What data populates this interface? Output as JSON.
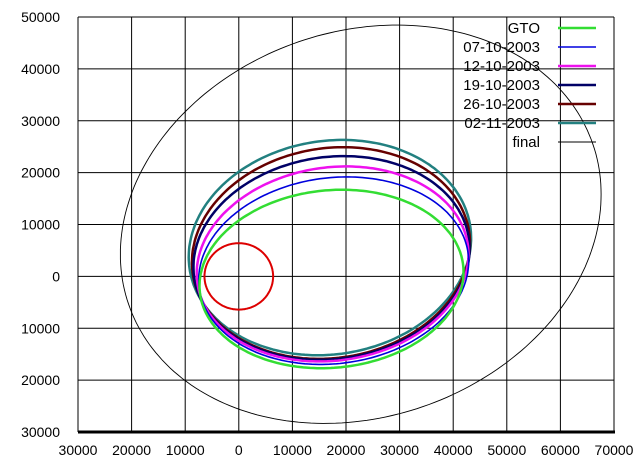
{
  "chart_data": {
    "type": "line",
    "title": "",
    "xlabel": "",
    "ylabel": "",
    "xlim": [
      -30000,
      70000
    ],
    "ylim": [
      -30000,
      50000
    ],
    "grid": true,
    "legend_position": "top-right",
    "x_ticks": [
      -30000,
      -20000,
      -10000,
      0,
      10000,
      20000,
      30000,
      40000,
      50000,
      60000,
      70000
    ],
    "x_tick_labels": [
      "30000",
      "20000",
      "10000",
      "0",
      "10000",
      "20000",
      "30000",
      "40000",
      "50000",
      "60000",
      "70000"
    ],
    "y_ticks": [
      50000,
      40000,
      30000,
      20000,
      10000,
      0,
      -10000,
      -20000,
      -30000
    ],
    "y_tick_labels": [
      "50000",
      "40000",
      "30000",
      "20000",
      "10000",
      "0",
      "10000",
      "20000",
      "30000"
    ],
    "earth": {
      "center": [
        0,
        0
      ],
      "radius": 6400,
      "color": "#dd0000"
    },
    "series": [
      {
        "name": "GTO",
        "color": "#33dd33",
        "width": 2.5,
        "ellipse": {
          "cx": 17300,
          "cy": -500,
          "rx": 24700,
          "ry": 17100,
          "rotation_deg": 6
        }
      },
      {
        "name": "07-10-2003",
        "color": "#0000dd",
        "width": 1.6,
        "ellipse": {
          "cx": 17700,
          "cy": 1100,
          "rx": 25300,
          "ry": 17900,
          "rotation_deg": 8
        }
      },
      {
        "name": "12-10-2003",
        "color": "#ee11ee",
        "width": 2.5,
        "ellipse": {
          "cx": 17500,
          "cy": 2400,
          "rx": 25500,
          "ry": 18600,
          "rotation_deg": 9
        }
      },
      {
        "name": "19-10-2003",
        "color": "#000066",
        "width": 2.5,
        "ellipse": {
          "cx": 17300,
          "cy": 3550,
          "rx": 25900,
          "ry": 19450,
          "rotation_deg": 9
        }
      },
      {
        "name": "26-10-2003",
        "color": "#660000",
        "width": 2.5,
        "ellipse": {
          "cx": 17200,
          "cy": 4500,
          "rx": 26100,
          "ry": 20200,
          "rotation_deg": 10
        }
      },
      {
        "name": "02-11-2003",
        "color": "#228080",
        "width": 2.5,
        "ellipse": {
          "cx": 17000,
          "cy": 5550,
          "rx": 26500,
          "ry": 20550,
          "rotation_deg": 10
        }
      },
      {
        "name": "final",
        "color": "#000000",
        "width": 0.9,
        "ellipse": {
          "cx": 22750,
          "cy": 10050,
          "rx": 46000,
          "ry": 37000,
          "rotation_deg": 22
        }
      }
    ]
  }
}
